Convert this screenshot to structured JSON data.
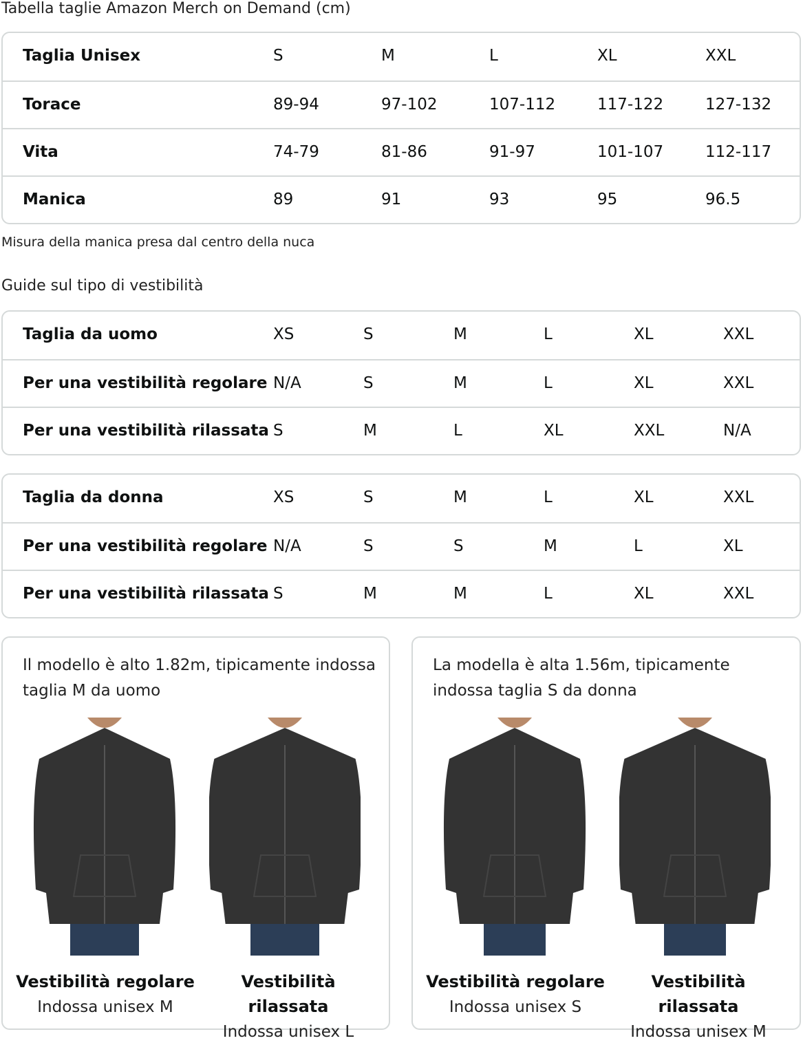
{
  "title": "Tabella taglie Amazon Merch on Demand (cm)",
  "unisex": {
    "rows": [
      {
        "label": "Taglia Unisex",
        "values": [
          "S",
          "M",
          "L",
          "XL",
          "XXL"
        ]
      },
      {
        "label": "Torace",
        "values": [
          "89-94",
          "97-102",
          "107-112",
          "117-122",
          "127-132"
        ]
      },
      {
        "label": "Vita",
        "values": [
          "74-79",
          "81-86",
          "91-97",
          "101-107",
          "112-117"
        ]
      },
      {
        "label": "Manica",
        "values": [
          "89",
          "91",
          "93",
          "95",
          "96.5"
        ]
      }
    ]
  },
  "note": "Misura della manica presa dal centro della nuca",
  "fit_title": "Guide sul tipo di vestibilità",
  "men": {
    "rows": [
      {
        "label": "Taglia da uomo",
        "values": [
          "XS",
          "S",
          "M",
          "L",
          "XL",
          "XXL"
        ]
      },
      {
        "label": "Per una vestibilità regolare",
        "values": [
          "N/A",
          "S",
          "M",
          "L",
          "XL",
          "XXL"
        ]
      },
      {
        "label": "Per una vestibilità rilassata",
        "values": [
          "S",
          "M",
          "L",
          "XL",
          "XXL",
          "N/A"
        ]
      }
    ]
  },
  "women": {
    "rows": [
      {
        "label": "Taglia da donna",
        "values": [
          "XS",
          "S",
          "M",
          "L",
          "XL",
          "XXL"
        ]
      },
      {
        "label": "Per una vestibilità regolare",
        "values": [
          "N/A",
          "S",
          "S",
          "M",
          "L",
          "XL"
        ]
      },
      {
        "label": "Per una vestibilità rilassata",
        "values": [
          "S",
          "M",
          "M",
          "L",
          "XL",
          "XXL"
        ]
      }
    ]
  },
  "cards": [
    {
      "desc": "Il modello è alto 1.82m, tipicamente indossa taglia M da uomo",
      "figures": [
        {
          "fit": "Vestibilità regolare",
          "wears": "Indossa unisex M"
        },
        {
          "fit": "Vestibilità rilassata",
          "wears": "Indossa unisex L"
        }
      ]
    },
    {
      "desc": "La modella è alta 1.56m, tipicamente indossa taglia S da donna",
      "figures": [
        {
          "fit": "Vestibilità regolare",
          "wears": "Indossa unisex S"
        },
        {
          "fit": "Vestibilità rilassata",
          "wears": "Indossa unisex M"
        }
      ]
    }
  ],
  "colors": {
    "border": "#d5d9d9",
    "hoodie": "#333333",
    "jeans": "#2c3e57"
  }
}
